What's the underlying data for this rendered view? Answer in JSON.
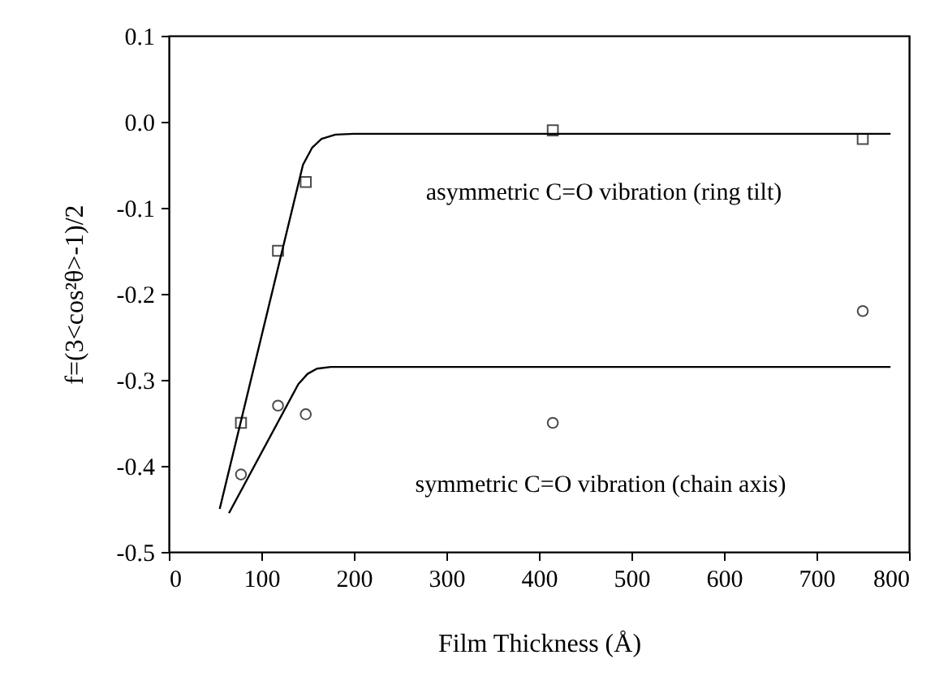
{
  "chart_data": {
    "type": "scatter",
    "xlabel": "Film Thickness (Å)",
    "ylabel": "f=(3<cos²θ>-1)/2",
    "xlim": [
      0,
      800
    ],
    "xticks": [
      0,
      100,
      200,
      300,
      400,
      500,
      600,
      700,
      800
    ],
    "ylim": [
      -0.5,
      0.1
    ],
    "yticks": [
      -0.5,
      -0.4,
      -0.3,
      -0.2,
      -0.1,
      {
        "value": 0,
        "label": "0.0"
      },
      0.1
    ],
    "grid": false,
    "series": [
      {
        "marker": "square",
        "color": "#000000",
        "x": [
          78,
          118,
          148,
          415,
          750
        ],
        "values": [
          -0.35,
          -0.15,
          -0.07,
          -0.01,
          -0.02
        ]
      },
      {
        "marker": "circle",
        "color": "#000000",
        "x": [
          78,
          118,
          148,
          415,
          750
        ],
        "values": [
          -0.41,
          -0.33,
          -0.34,
          -0.35,
          -0.22
        ]
      },
      {
        "type": "line",
        "marker": "none",
        "color": "#000000",
        "x": [
          55,
          145,
          155,
          165,
          180,
          200,
          780
        ],
        "values": [
          -0.45,
          -0.05,
          -0.03,
          -0.02,
          -0.015,
          -0.014,
          -0.014
        ]
      },
      {
        "type": "line",
        "marker": "none",
        "color": "#000000",
        "x": [
          65,
          140,
          150,
          160,
          175,
          780
        ],
        "values": [
          -0.455,
          -0.305,
          -0.293,
          -0.287,
          -0.285,
          -0.285
        ]
      }
    ],
    "annotations": [
      "asymmetric C=O vibration (ring tilt)",
      "symmetric C=O vibration (chain axis)"
    ]
  }
}
